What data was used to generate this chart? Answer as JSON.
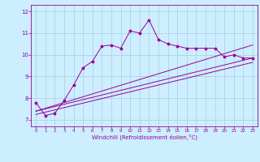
{
  "xlabel": "Windchill (Refroidissement éolien,°C)",
  "bg_color": "#cceeff",
  "line_color": "#990099",
  "grid_color": "#aaccdd",
  "x_ticks": [
    0,
    1,
    2,
    3,
    4,
    5,
    6,
    7,
    8,
    9,
    10,
    11,
    12,
    13,
    14,
    15,
    16,
    17,
    18,
    19,
    20,
    21,
    22,
    23
  ],
  "y_ticks": [
    7,
    8,
    9,
    10,
    11,
    12
  ],
  "ylim": [
    6.7,
    12.3
  ],
  "xlim": [
    -0.5,
    23.5
  ],
  "series1_x": [
    0,
    1,
    2,
    3,
    4,
    5,
    6,
    7,
    8,
    9,
    10,
    11,
    12,
    13,
    14,
    15,
    16,
    17,
    18,
    19,
    20,
    21,
    22,
    23
  ],
  "series1_y": [
    7.8,
    7.2,
    7.3,
    7.9,
    8.6,
    9.4,
    9.7,
    10.4,
    10.45,
    10.3,
    11.1,
    11.0,
    11.6,
    10.7,
    10.5,
    10.4,
    10.3,
    10.3,
    10.3,
    10.3,
    9.9,
    10.0,
    9.85,
    9.85
  ],
  "series2_x": [
    0,
    23
  ],
  "series2_y": [
    7.4,
    9.85
  ],
  "series3_x": [
    0,
    23
  ],
  "series3_y": [
    7.25,
    9.65
  ],
  "series4_x": [
    0,
    23
  ],
  "series4_y": [
    7.4,
    10.45
  ]
}
